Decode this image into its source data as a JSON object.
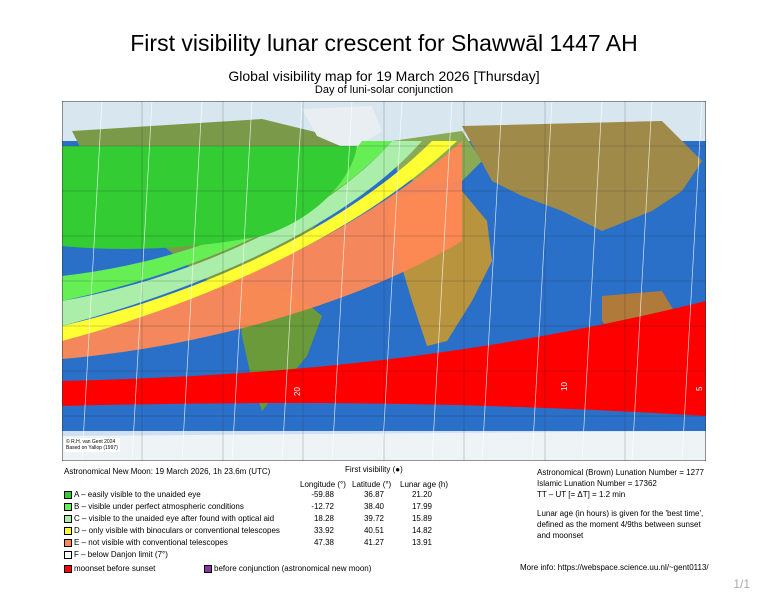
{
  "title": "First visibility lunar crescent for Shawwāl 1447 AH",
  "subtitle": "Global visibility map for 19 March 2026 [Thursday]",
  "subtitle2": "Day of luni-solar conjunction",
  "credit": [
    "© R.H. van Gent 2024",
    "Based on Yallop (1997)"
  ],
  "map_labels": [
    "20",
    "10",
    "5"
  ],
  "new_moon": "Astronomical New Moon: 19 March 2026, 1h 23.6m (UTC)",
  "first_visibility_label": "First visibility",
  "first_visibility_marker": "(●)",
  "columns": [
    "Longitude (°)",
    "Latitude (°)",
    "Lunar age (h)"
  ],
  "legend": [
    {
      "label": "A – easily visible to the unaided eye",
      "color": "#33cc33",
      "lon": "-59.88",
      "lat": "36.87",
      "age": "21.20"
    },
    {
      "label": "B – visible under perfect atmospheric conditions",
      "color": "#66ee55",
      "lon": "-12.72",
      "lat": "38.40",
      "age": "17.99"
    },
    {
      "label": "C – visible to the unaided eye after found with optical aid",
      "color": "#aaeeaa",
      "lon": "18.28",
      "lat": "39.72",
      "age": "15.89"
    },
    {
      "label": "D – only visible with binoculars or conventional telescopes",
      "color": "#ffff33",
      "lon": "33.92",
      "lat": "40.51",
      "age": "14.82"
    },
    {
      "label": "E – not visible with conventional telescopes",
      "color": "#ff8855",
      "lon": "47.38",
      "lat": "41.27",
      "age": "13.91"
    },
    {
      "label": "F – below Danjon limit (7°)",
      "color": "#ffffff",
      "lon": "",
      "lat": "",
      "age": ""
    }
  ],
  "moonset_label": "moonset before sunset",
  "moonset_color": "#ff0000",
  "before_label": "before conjunction (astronomical new moon)",
  "before_color": "#8833aa",
  "right_info": [
    "Astronomical (Brown) Lunation Number = 1277",
    "Islamic Lunation Number = 17362",
    "TT – UT [= ΔT] = 1.2 min"
  ],
  "lunar_age_note": [
    "Lunar age (in hours) is given for the 'best time',",
    "defined as the moment 4/9ths between sunset",
    "and moonset"
  ],
  "more_info": "More info: https://webspace.science.uu.nl/~gent0113/",
  "page_number": "1/1"
}
